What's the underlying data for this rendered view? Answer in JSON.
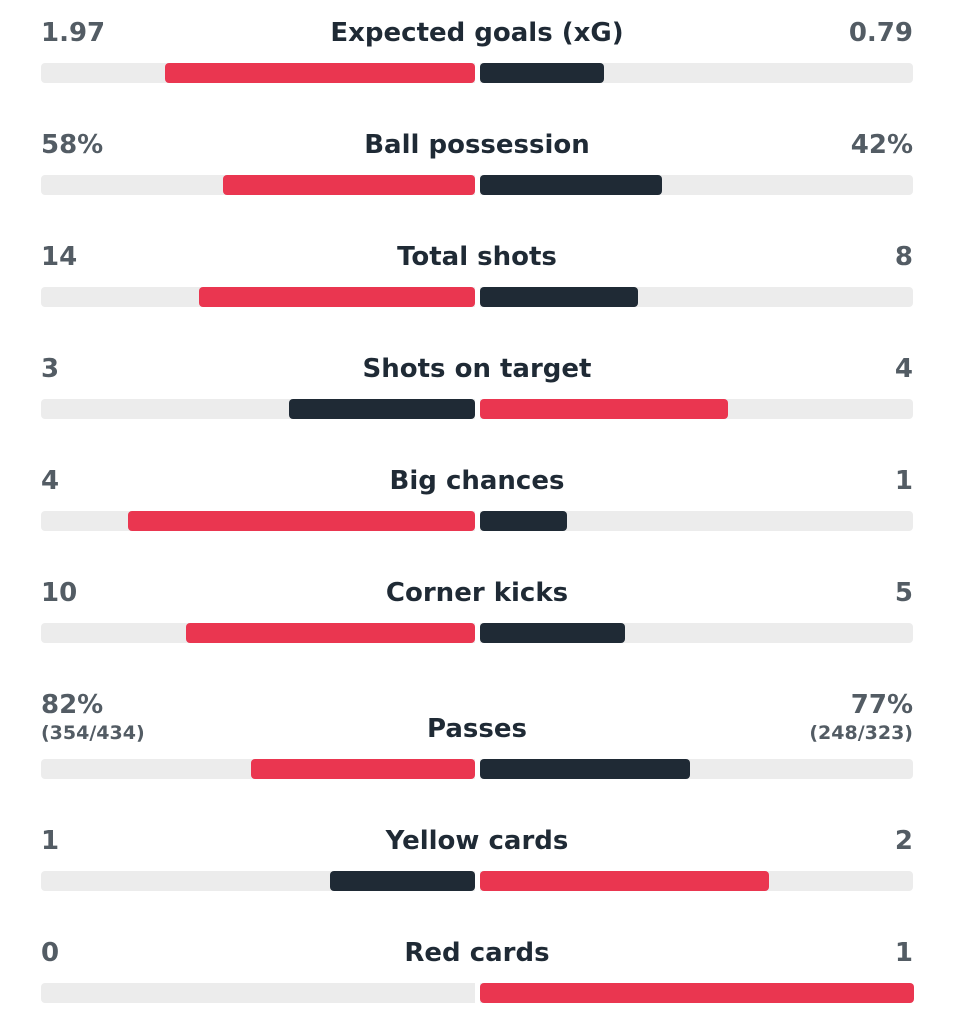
{
  "stats": [
    {
      "name": "Expected goals (xG)",
      "home": 1.97,
      "away": 0.79
    },
    {
      "name": "Ball possession",
      "home": 58,
      "away": 42,
      "home_label": "58%",
      "away_label": "42%"
    },
    {
      "name": "Total shots",
      "home": 14,
      "away": 8
    },
    {
      "name": "Shots on target",
      "home": 3,
      "away": 4
    },
    {
      "name": "Big chances",
      "home": 4,
      "away": 1
    },
    {
      "name": "Corner kicks",
      "home": 10,
      "away": 5
    },
    {
      "name": "Passes",
      "home": 82,
      "away": 77,
      "home_label": "82%",
      "away_label": "77%",
      "home_detail": "(354/434)",
      "away_detail": "(248/323)"
    },
    {
      "name": "Yellow cards",
      "home": 1,
      "away": 2
    },
    {
      "name": "Red cards",
      "home": 0,
      "away": 1
    }
  ],
  "colors": {
    "leader": "#ea3650",
    "trailer": "#1f2a35",
    "track": "#ececec"
  }
}
